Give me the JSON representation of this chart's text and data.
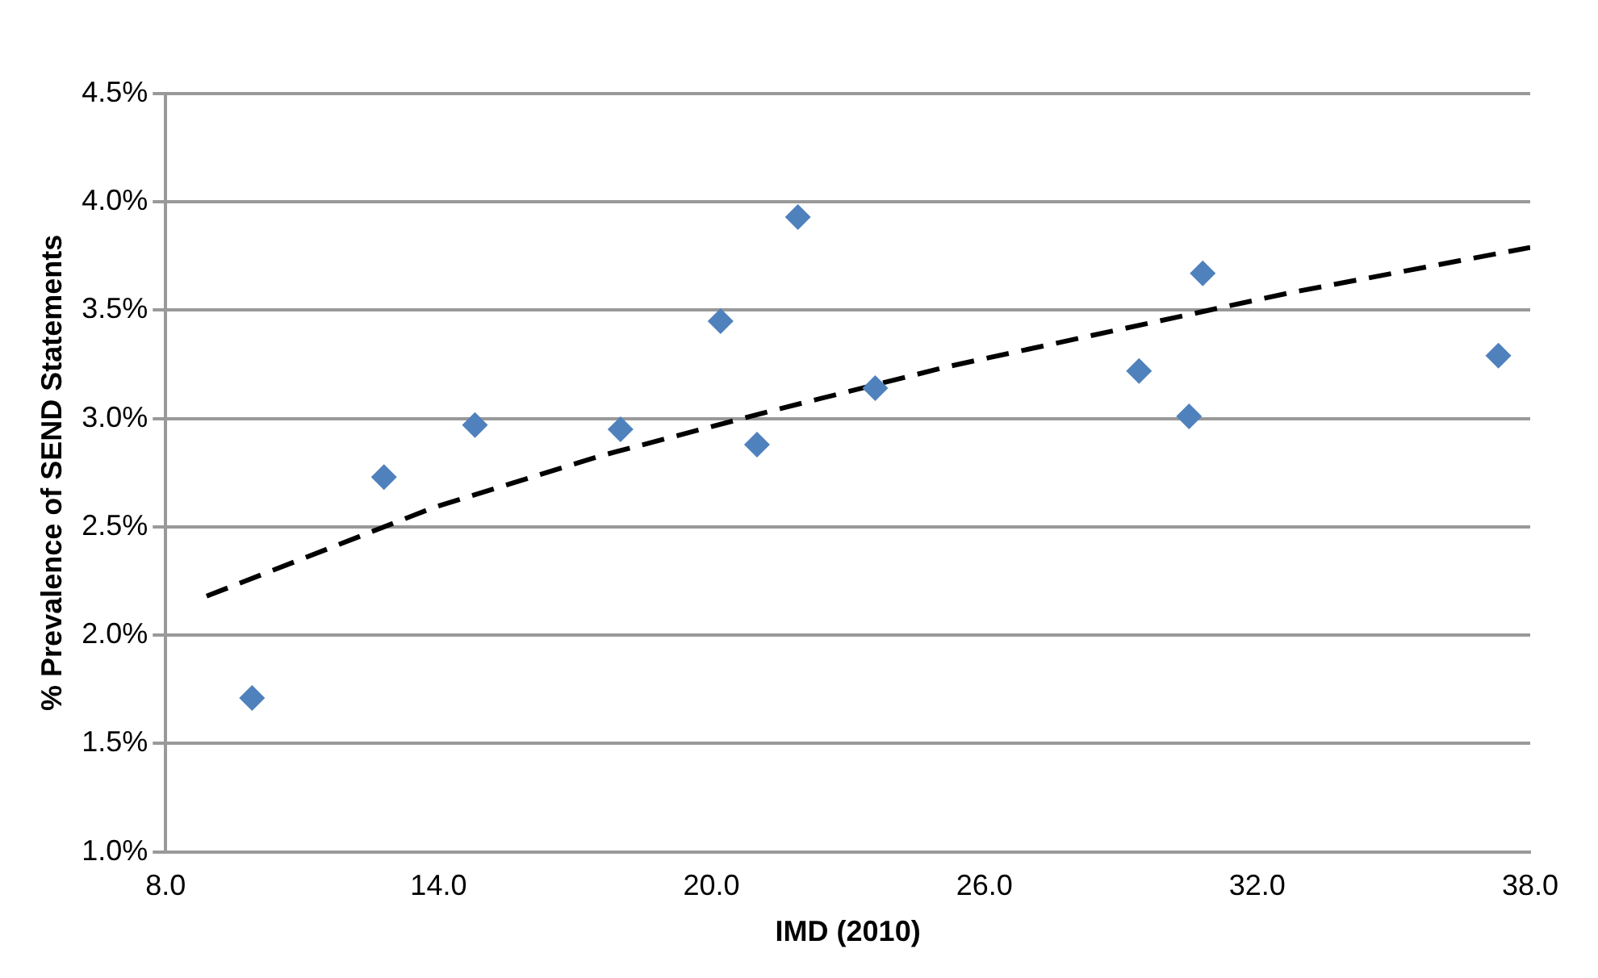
{
  "chart_data": {
    "type": "scatter",
    "xlabel": "IMD (2010)",
    "ylabel": "% Prevalence of SEND Statements",
    "xlim": [
      8,
      38
    ],
    "xticks": [
      {
        "value": 8,
        "label": "8.0"
      },
      {
        "value": 14,
        "label": "14.0"
      },
      {
        "value": 20,
        "label": "20.0"
      },
      {
        "value": 26,
        "label": "26.0"
      },
      {
        "value": 32,
        "label": "32.0"
      },
      {
        "value": 38,
        "label": "38.0"
      }
    ],
    "ylim": [
      1.0,
      4.5
    ],
    "yticks": [
      {
        "value": 1.0,
        "label": "1.0%"
      },
      {
        "value": 1.5,
        "label": "1.5%"
      },
      {
        "value": 2.0,
        "label": "2.0%"
      },
      {
        "value": 2.5,
        "label": "2.5%"
      },
      {
        "value": 3.0,
        "label": "3.0%"
      },
      {
        "value": 3.5,
        "label": "3.5%"
      },
      {
        "value": 4.0,
        "label": "4.0%"
      },
      {
        "value": 4.5,
        "label": "4.5%"
      }
    ],
    "grid": "y",
    "legend": false,
    "series": [
      {
        "color": "#4f81bd",
        "marker": "diamond",
        "x": [
          9.9,
          12.8,
          14.8,
          18.0,
          20.2,
          21.0,
          21.9,
          23.6,
          29.4,
          30.5,
          30.8,
          37.3
        ],
        "values": [
          1.71,
          2.73,
          2.97,
          2.95,
          3.45,
          2.88,
          3.93,
          3.14,
          3.22,
          3.01,
          3.67,
          3.29
        ]
      },
      {
        "type": "line",
        "color": "#000000",
        "marker": "none",
        "line_style": "dashed",
        "x": [
          8.9,
          13.9,
          17.6,
          21.4,
          25.2,
          32.7,
          38.0
        ],
        "values": [
          2.18,
          2.59,
          2.83,
          3.04,
          3.24,
          3.58,
          3.79
        ]
      }
    ]
  }
}
